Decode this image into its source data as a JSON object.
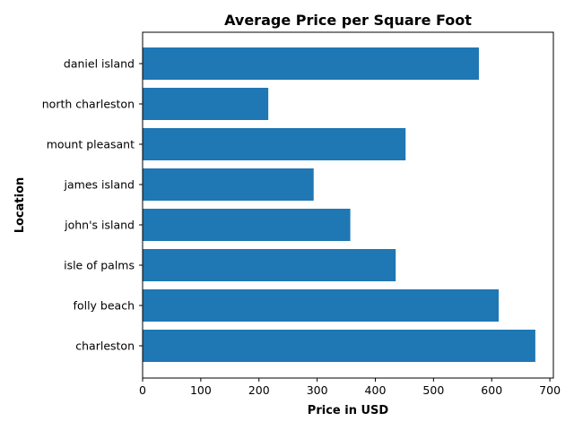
{
  "chart_data": {
    "type": "bar",
    "orientation": "horizontal",
    "title": "Average Price per Square Foot",
    "xlabel": "Price in USD",
    "ylabel": "Location",
    "categories": [
      "charleston",
      "folly beach",
      "isle of palms",
      "john's island",
      "james island",
      "mount pleasant",
      "north charleston",
      "daniel island"
    ],
    "values": [
      675,
      612,
      435,
      357,
      294,
      452,
      216,
      578
    ],
    "xlim": [
      0,
      700
    ],
    "xticks": [
      0,
      100,
      200,
      300,
      400,
      500,
      600,
      700
    ],
    "grid": false,
    "bar_color": "#1f77b4"
  }
}
